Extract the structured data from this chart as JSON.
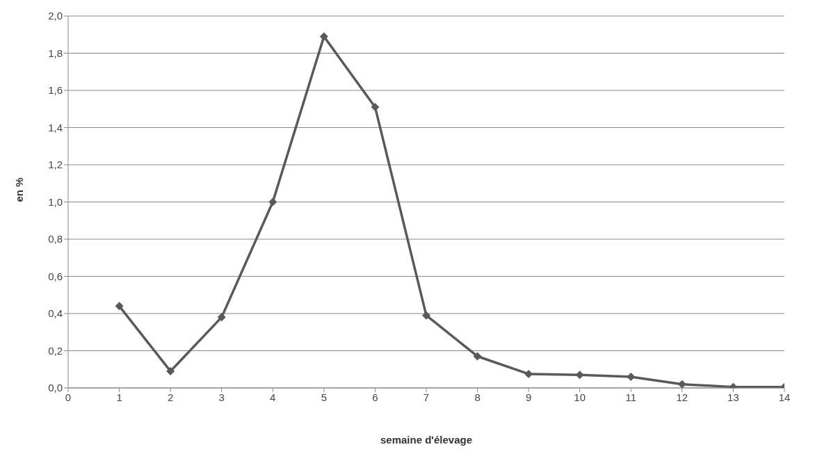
{
  "chart_data": {
    "type": "line",
    "xlabel": "semaine d'élevage",
    "ylabel": "en %",
    "x": [
      1,
      2,
      3,
      4,
      5,
      6,
      7,
      8,
      9,
      10,
      11,
      12,
      13,
      14
    ],
    "series": [
      {
        "color": "#595959",
        "values": [
          0.44,
          0.09,
          0.38,
          1.0,
          1.89,
          1.51,
          0.39,
          0.17,
          0.075,
          0.07,
          0.06,
          0.02,
          0.005,
          0.005
        ]
      }
    ],
    "xlim": [
      0,
      14
    ],
    "xticks": [
      0,
      1,
      2,
      3,
      4,
      5,
      6,
      7,
      8,
      9,
      10,
      11,
      12,
      13,
      14
    ],
    "ylim": [
      0,
      2
    ],
    "yticks": [
      {
        "value": 0,
        "label": "0,0"
      },
      {
        "value": 0.2,
        "label": "0,2"
      },
      {
        "value": 0.4,
        "label": "0,4"
      },
      {
        "value": 0.6,
        "label": "0,6"
      },
      {
        "value": 0.8,
        "label": "0,8"
      },
      {
        "value": 1,
        "label": "1,0"
      },
      {
        "value": 1.2,
        "label": "1,2"
      },
      {
        "value": 1.4,
        "label": "1,4"
      },
      {
        "value": 1.6,
        "label": "1,6"
      },
      {
        "value": 1.8,
        "label": "1,8"
      },
      {
        "value": 2,
        "label": "2,0"
      }
    ],
    "grid": "y",
    "marker": "diamond",
    "line_style": "solid",
    "legend": false
  }
}
